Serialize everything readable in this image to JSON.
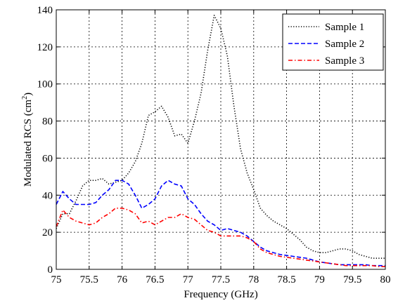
{
  "chart_data": {
    "type": "line",
    "title": "",
    "xlabel": "Frequency (GHz)",
    "ylabel": {
      "main": "Modulated RCS (cm",
      "sup": "2",
      "close": ")"
    },
    "xlim": [
      75,
      80
    ],
    "ylim": [
      0,
      140
    ],
    "xticks": [
      75,
      75.5,
      76,
      76.5,
      77,
      77.5,
      78,
      78.5,
      79,
      79.5,
      80
    ],
    "xtick_labels": [
      "75",
      "75.5",
      "76",
      "76.5",
      "77",
      "77.5",
      "78",
      "78.5",
      "79",
      "79.5",
      "80"
    ],
    "yticks": [
      0,
      20,
      40,
      60,
      80,
      100,
      120,
      140
    ],
    "ytick_labels": [
      "0",
      "20",
      "40",
      "60",
      "80",
      "100",
      "120",
      "140"
    ],
    "grid": true,
    "legend_position": "top-right",
    "series": [
      {
        "name": "Sample 1",
        "color": "#000000",
        "dash": "dotted",
        "points": [
          [
            75,
            22
          ],
          [
            75.1,
            30
          ],
          [
            75.2,
            30
          ],
          [
            75.3,
            37
          ],
          [
            75.4,
            45
          ],
          [
            75.5,
            48
          ],
          [
            75.6,
            48
          ],
          [
            75.7,
            49
          ],
          [
            75.8,
            46
          ],
          [
            75.9,
            47
          ],
          [
            76,
            48
          ],
          [
            76.1,
            52
          ],
          [
            76.2,
            58
          ],
          [
            76.3,
            68
          ],
          [
            76.4,
            83
          ],
          [
            76.5,
            85
          ],
          [
            76.6,
            88
          ],
          [
            76.7,
            82
          ],
          [
            76.8,
            72
          ],
          [
            76.9,
            73
          ],
          [
            77,
            68
          ],
          [
            77.1,
            80
          ],
          [
            77.2,
            95
          ],
          [
            77.3,
            118
          ],
          [
            77.4,
            137
          ],
          [
            77.5,
            130
          ],
          [
            77.6,
            115
          ],
          [
            77.7,
            88
          ],
          [
            77.8,
            65
          ],
          [
            77.9,
            52
          ],
          [
            78,
            43
          ],
          [
            78.1,
            33
          ],
          [
            78.2,
            29
          ],
          [
            78.3,
            26
          ],
          [
            78.4,
            24
          ],
          [
            78.5,
            22
          ],
          [
            78.6,
            19
          ],
          [
            78.7,
            16
          ],
          [
            78.8,
            12
          ],
          [
            78.9,
            10
          ],
          [
            79,
            9
          ],
          [
            79.1,
            9
          ],
          [
            79.2,
            10
          ],
          [
            79.3,
            11
          ],
          [
            79.4,
            11
          ],
          [
            79.5,
            10
          ],
          [
            79.6,
            8
          ],
          [
            79.7,
            7
          ],
          [
            79.8,
            6
          ],
          [
            79.9,
            6
          ],
          [
            80,
            6
          ]
        ]
      },
      {
        "name": "Sample 2",
        "color": "#0000ff",
        "dash": "dashed",
        "points": [
          [
            75,
            35
          ],
          [
            75.1,
            42
          ],
          [
            75.2,
            38
          ],
          [
            75.3,
            35
          ],
          [
            75.4,
            35
          ],
          [
            75.5,
            35
          ],
          [
            75.6,
            36
          ],
          [
            75.7,
            40
          ],
          [
            75.8,
            43
          ],
          [
            75.9,
            48
          ],
          [
            76,
            48
          ],
          [
            76.1,
            46
          ],
          [
            76.2,
            40
          ],
          [
            76.3,
            33
          ],
          [
            76.4,
            35
          ],
          [
            76.5,
            38
          ],
          [
            76.6,
            45
          ],
          [
            76.7,
            48
          ],
          [
            76.8,
            46
          ],
          [
            76.9,
            45
          ],
          [
            77,
            38
          ],
          [
            77.1,
            35
          ],
          [
            77.2,
            30
          ],
          [
            77.3,
            26
          ],
          [
            77.4,
            24
          ],
          [
            77.5,
            21
          ],
          [
            77.6,
            22
          ],
          [
            77.7,
            21
          ],
          [
            77.8,
            20
          ],
          [
            77.9,
            18
          ],
          [
            78,
            15
          ],
          [
            78.1,
            12
          ],
          [
            78.2,
            10
          ],
          [
            78.3,
            9
          ],
          [
            78.4,
            8
          ],
          [
            78.5,
            7.5
          ],
          [
            78.6,
            7
          ],
          [
            78.7,
            6.5
          ],
          [
            78.8,
            6
          ],
          [
            78.9,
            5
          ],
          [
            79,
            4
          ],
          [
            79.1,
            3.5
          ],
          [
            79.2,
            3
          ],
          [
            79.3,
            2.5
          ],
          [
            79.4,
            2.5
          ],
          [
            79.5,
            2.5
          ],
          [
            79.6,
            2.5
          ],
          [
            79.7,
            2.5
          ],
          [
            79.8,
            2
          ],
          [
            79.9,
            2
          ],
          [
            80,
            2
          ]
        ]
      },
      {
        "name": "Sample 3",
        "color": "#ff0000",
        "dash": "dashdot",
        "points": [
          [
            75,
            23
          ],
          [
            75.1,
            32
          ],
          [
            75.2,
            28
          ],
          [
            75.3,
            26
          ],
          [
            75.4,
            25
          ],
          [
            75.5,
            24
          ],
          [
            75.6,
            25
          ],
          [
            75.7,
            28
          ],
          [
            75.8,
            30
          ],
          [
            75.9,
            33
          ],
          [
            76,
            33
          ],
          [
            76.1,
            32
          ],
          [
            76.2,
            30
          ],
          [
            76.3,
            25
          ],
          [
            76.4,
            26
          ],
          [
            76.5,
            24
          ],
          [
            76.6,
            26
          ],
          [
            76.7,
            28
          ],
          [
            76.8,
            28
          ],
          [
            76.9,
            30
          ],
          [
            77,
            28
          ],
          [
            77.1,
            27
          ],
          [
            77.2,
            24
          ],
          [
            77.3,
            21
          ],
          [
            77.4,
            20
          ],
          [
            77.5,
            18
          ],
          [
            77.6,
            18
          ],
          [
            77.7,
            18
          ],
          [
            77.8,
            18
          ],
          [
            77.9,
            17
          ],
          [
            78,
            15
          ],
          [
            78.1,
            11
          ],
          [
            78.2,
            9
          ],
          [
            78.3,
            8
          ],
          [
            78.4,
            7
          ],
          [
            78.5,
            6.5
          ],
          [
            78.6,
            6
          ],
          [
            78.7,
            5.5
          ],
          [
            78.8,
            5
          ],
          [
            78.9,
            4.5
          ],
          [
            79,
            4
          ],
          [
            79.1,
            3.5
          ],
          [
            79.2,
            3
          ],
          [
            79.3,
            2.5
          ],
          [
            79.4,
            2
          ],
          [
            79.5,
            2
          ],
          [
            79.6,
            2
          ],
          [
            79.7,
            2
          ],
          [
            79.8,
            2
          ],
          [
            79.9,
            1.5
          ],
          [
            80,
            1.5
          ]
        ]
      }
    ]
  }
}
